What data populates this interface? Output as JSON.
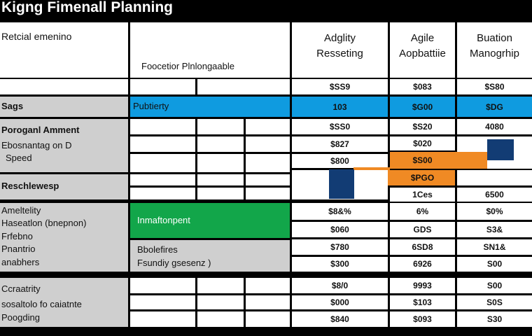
{
  "title": "Kigng Fimenall Planning",
  "header": {
    "corner": "Retcial emenino",
    "mid": "Foocetior Plnlongaable",
    "col1": "Adglity\nResseting",
    "col2": "Agile\nAopbattiie",
    "col3": "Buation\nManogrhip"
  },
  "header_values": [
    "$SS9",
    "$083",
    "$S80"
  ],
  "bands": {
    "blue": "Pubtierty",
    "green": "Inmaftonpent",
    "boottfitres": "Bbolefires",
    "fsunday": "Fsundiy  gsesenz )"
  },
  "left_labels": {
    "sags": "Sags",
    "group_a": [
      "Poroganl Amment",
      "Ebosnantag on D",
      "Speed"
    ],
    "resetear": "Reschlewesp",
    "group_b": [
      "Ameltelity",
      "Haseatlon (bnepnon)",
      "Frfebno",
      "Pnantrio",
      "anabhers"
    ],
    "group_c": [
      "Ccraatrity",
      "sosaltolo fo caiatnte",
      "Poogding"
    ]
  },
  "values": {
    "col1": [
      "103",
      "$SS0",
      "$827",
      "$800",
      "",
      "$8&%",
      "$060",
      "$780",
      "$300",
      "$8/0",
      "$000",
      "$840"
    ],
    "col2": [
      "$G00",
      "$S20",
      "$020",
      "$S00",
      "$PGO",
      "1Ces",
      "6%",
      "GDS",
      "6SD8",
      "6926",
      "9993",
      "$103",
      "$093"
    ],
    "col3": [
      "$DG",
      "4080",
      "6500",
      "$0%",
      "S3&",
      "SN1&",
      "S00",
      "S00",
      "S0S",
      "S30"
    ]
  },
  "colors": {
    "blue": "#0f9be0",
    "green": "#12a64a",
    "orange": "#f08a24",
    "navy": "#123c74",
    "gray": "#cfcfcf"
  }
}
